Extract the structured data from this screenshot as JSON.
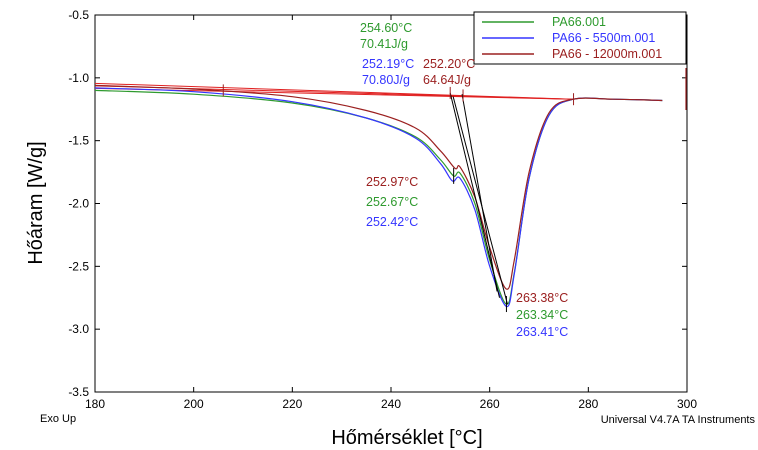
{
  "chart_data": {
    "type": "line",
    "xlabel": "Hőmérséklet [°C]",
    "ylabel": "Hőáram [W/g]",
    "xlim": [
      180,
      300
    ],
    "ylim": [
      -3.5,
      -0.5
    ],
    "xticks": [
      180,
      200,
      220,
      240,
      260,
      280,
      300
    ],
    "yticks": [
      -0.5,
      -1.0,
      -1.5,
      -2.0,
      -2.5,
      -3.0,
      -3.5
    ],
    "xtick_labels": [
      "180",
      "200",
      "220",
      "240",
      "260",
      "280",
      "300"
    ],
    "ytick_labels": [
      "-0.5",
      "-1.0",
      "-1.5",
      "-2.0",
      "-2.5",
      "-3.0",
      "-3.5"
    ],
    "footer_left": "Exo Up",
    "footer_right": "Universal V4.7A TA Instruments",
    "legend": {
      "placement": "top-right",
      "entries": [
        {
          "label": "PA66.001",
          "color": "#2e9a2e"
        },
        {
          "label": "PA66 - 5500m.001",
          "color": "#3535ff"
        },
        {
          "label": "PA66 - 12000m.001",
          "color": "#9b2020"
        }
      ]
    },
    "series": [
      {
        "name": "PA66.001",
        "color": "#2e9a2e",
        "x": [
          180,
          200,
          220,
          235,
          245,
          250,
          252.67,
          254,
          257,
          260,
          263.34,
          265,
          268,
          272,
          277,
          285,
          295
        ],
        "y": [
          -1.1,
          -1.13,
          -1.2,
          -1.32,
          -1.47,
          -1.65,
          -1.78,
          -1.76,
          -2.0,
          -2.45,
          -2.8,
          -2.55,
          -1.8,
          -1.3,
          -1.17,
          -1.17,
          -1.18
        ]
      },
      {
        "name": "PA66 - 5500m.001",
        "color": "#3535ff",
        "x": [
          180,
          200,
          220,
          235,
          245,
          250,
          252.42,
          254,
          257,
          260,
          263.41,
          265,
          268,
          272,
          277,
          285,
          295
        ],
        "y": [
          -1.08,
          -1.11,
          -1.19,
          -1.32,
          -1.48,
          -1.68,
          -1.82,
          -1.8,
          -2.05,
          -2.5,
          -2.82,
          -2.56,
          -1.8,
          -1.3,
          -1.17,
          -1.17,
          -1.18
        ]
      },
      {
        "name": "PA66 - 12000m.001",
        "color": "#9b2020",
        "x": [
          180,
          200,
          220,
          235,
          245,
          250,
          252.97,
          254,
          257,
          260,
          263.38,
          265,
          268,
          272,
          277,
          285,
          295
        ],
        "y": [
          -1.06,
          -1.09,
          -1.15,
          -1.26,
          -1.4,
          -1.58,
          -1.72,
          -1.71,
          -1.95,
          -2.35,
          -2.68,
          -2.45,
          -1.75,
          -1.28,
          -1.17,
          -1.17,
          -1.18
        ]
      }
    ],
    "annotations": [
      {
        "text": "254.60°C",
        "color": "#2e9a2e",
        "group": "onset"
      },
      {
        "text": "70.41J/g",
        "color": "#2e9a2e",
        "group": "onset"
      },
      {
        "text": "252.19°C",
        "color": "#3535ff",
        "group": "onset"
      },
      {
        "text": "70.80J/g",
        "color": "#3535ff",
        "group": "onset"
      },
      {
        "text": "252.20°C",
        "color": "#9b2020",
        "group": "onset"
      },
      {
        "text": "64.64J/g",
        "color": "#9b2020",
        "group": "onset"
      },
      {
        "text": "252.97°C",
        "color": "#9b2020",
        "group": "shoulder"
      },
      {
        "text": "252.67°C",
        "color": "#2e9a2e",
        "group": "shoulder"
      },
      {
        "text": "252.42°C",
        "color": "#3535ff",
        "group": "shoulder"
      },
      {
        "text": "263.38°C",
        "color": "#9b2020",
        "group": "peak"
      },
      {
        "text": "263.34°C",
        "color": "#2e9a2e",
        "group": "peak"
      },
      {
        "text": "263.41°C",
        "color": "#3535ff",
        "group": "peak"
      }
    ]
  }
}
